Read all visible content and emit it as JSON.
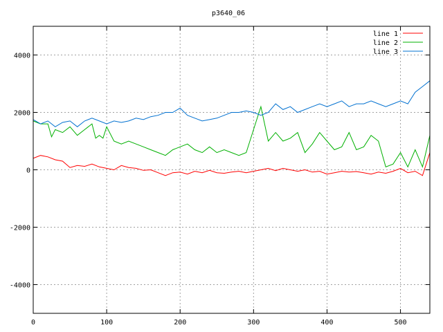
{
  "chart_data": {
    "type": "line",
    "title": "p3640_06",
    "xlabel": "",
    "ylabel": "",
    "xlim": [
      0,
      540
    ],
    "ylim": [
      -5000,
      5000
    ],
    "xticks": [
      0,
      100,
      200,
      300,
      400,
      500
    ],
    "yticks": [
      -4000,
      -2000,
      0,
      2000,
      4000
    ],
    "grid": true,
    "legend_position": "top-right",
    "series": [
      {
        "name": "line 1",
        "color": "#ff0000",
        "x": [
          0,
          10,
          20,
          30,
          40,
          50,
          60,
          70,
          80,
          90,
          100,
          110,
          120,
          130,
          140,
          150,
          160,
          170,
          180,
          190,
          200,
          210,
          220,
          230,
          240,
          250,
          260,
          270,
          280,
          290,
          300,
          310,
          320,
          330,
          340,
          350,
          360,
          370,
          380,
          390,
          400,
          410,
          420,
          430,
          440,
          450,
          460,
          470,
          480,
          490,
          500,
          510,
          520,
          530,
          540
        ],
        "values": [
          400,
          500,
          450,
          350,
          300,
          80,
          150,
          120,
          200,
          100,
          50,
          0,
          150,
          80,
          50,
          -20,
          0,
          -100,
          -200,
          -100,
          -80,
          -150,
          -50,
          -100,
          -20,
          -100,
          -120,
          -80,
          -50,
          -100,
          -50,
          0,
          50,
          -30,
          50,
          0,
          -50,
          0,
          -80,
          -50,
          -150,
          -100,
          -50,
          -80,
          -60,
          -100,
          -150,
          -80,
          -120,
          -50,
          50,
          -100,
          -50,
          -200,
          600
        ]
      },
      {
        "name": "line 2",
        "color": "#00b000",
        "x": [
          0,
          10,
          20,
          25,
          30,
          40,
          50,
          60,
          70,
          80,
          85,
          90,
          95,
          100,
          110,
          120,
          130,
          140,
          150,
          160,
          170,
          180,
          190,
          200,
          210,
          220,
          230,
          240,
          250,
          260,
          270,
          280,
          290,
          300,
          310,
          320,
          330,
          340,
          350,
          360,
          370,
          380,
          390,
          400,
          410,
          420,
          430,
          440,
          450,
          460,
          470,
          480,
          490,
          500,
          510,
          520,
          530,
          540
        ],
        "values": [
          1700,
          1600,
          1600,
          1150,
          1400,
          1300,
          1500,
          1200,
          1400,
          1600,
          1100,
          1200,
          1100,
          1500,
          1000,
          900,
          1000,
          900,
          800,
          700,
          600,
          500,
          700,
          800,
          900,
          700,
          600,
          800,
          600,
          700,
          600,
          500,
          600,
          1400,
          2200,
          1000,
          1300,
          1000,
          1100,
          1300,
          600,
          900,
          1300,
          1000,
          700,
          800,
          1300,
          700,
          800,
          1200,
          1000,
          100,
          200,
          600,
          100,
          700,
          100,
          1200
        ]
      },
      {
        "name": "line 3",
        "color": "#0070d0",
        "x": [
          0,
          10,
          20,
          30,
          40,
          50,
          60,
          70,
          80,
          90,
          100,
          110,
          120,
          130,
          140,
          150,
          160,
          170,
          180,
          190,
          200,
          210,
          220,
          230,
          240,
          250,
          260,
          270,
          280,
          290,
          300,
          310,
          320,
          330,
          340,
          350,
          360,
          370,
          380,
          390,
          400,
          410,
          420,
          430,
          440,
          450,
          460,
          470,
          480,
          490,
          500,
          510,
          520,
          530,
          540
        ],
        "values": [
          1750,
          1600,
          1700,
          1500,
          1650,
          1700,
          1500,
          1700,
          1800,
          1700,
          1600,
          1700,
          1650,
          1700,
          1800,
          1750,
          1850,
          1900,
          2000,
          2000,
          2150,
          1900,
          1800,
          1700,
          1750,
          1800,
          1900,
          2000,
          2000,
          2050,
          2000,
          1900,
          2000,
          2300,
          2100,
          2200,
          2000,
          2100,
          2200,
          2300,
          2200,
          2300,
          2400,
          2200,
          2300,
          2300,
          2400,
          2300,
          2200,
          2300,
          2400,
          2300,
          2700,
          2900,
          3100
        ]
      }
    ]
  }
}
